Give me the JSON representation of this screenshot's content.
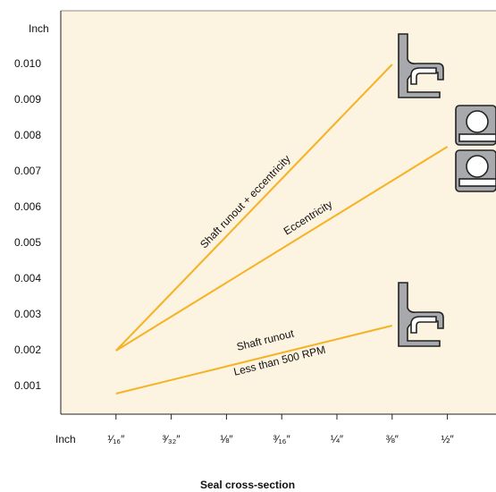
{
  "chart_data": {
    "type": "line",
    "x_label": "Seal cross-section",
    "y_unit_label": "Inch",
    "x_unit_label": "Inch",
    "categories": [
      "¹⁄₁₆″",
      "³⁄₃₂″",
      "⅛″",
      "³⁄₁₆″",
      "¼″",
      "⅜″",
      "½″"
    ],
    "series": [
      {
        "name": "Shaft runout + eccentricity",
        "color": "#f5b324",
        "values": [
          0.002,
          0.0036,
          0.0052,
          0.0068,
          0.0084,
          0.01,
          null
        ]
      },
      {
        "name": "Eccentricity",
        "color": "#f5b324",
        "values": [
          0.002,
          0.00295,
          0.0039,
          0.00485,
          0.0058,
          0.00675,
          0.0077
        ]
      },
      {
        "name": "Shaft runout",
        "color": "#f5b324",
        "values": [
          0.0008,
          0.00118,
          0.00156,
          0.00194,
          0.00232,
          0.0027,
          null
        ]
      }
    ],
    "annotations": [
      "Less than 500 RPM"
    ],
    "ylim": [
      0.000225,
      0.0115
    ],
    "yticks": [
      0.001,
      0.002,
      0.003,
      0.004,
      0.005,
      0.006,
      0.007,
      0.008,
      0.009,
      {
        "value": 0.01,
        "label": "0.010"
      }
    ],
    "background": "#fdf3e1"
  }
}
